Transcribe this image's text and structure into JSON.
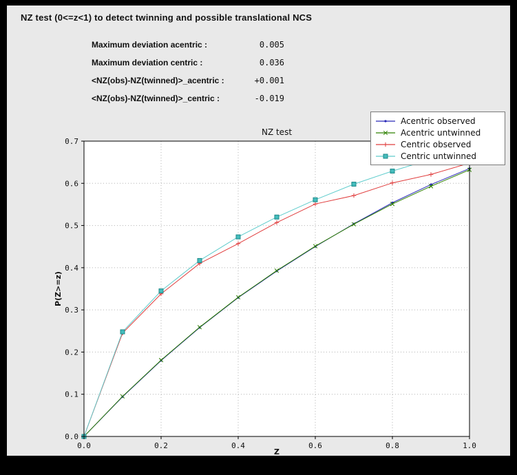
{
  "window": {
    "background": "#000000",
    "panel_background": "#e9e9e9"
  },
  "header": {
    "title": "NZ test (0<=z<1) to detect twinning and possible translational NCS"
  },
  "stats": {
    "rows": [
      {
        "label": "Maximum deviation acentric :",
        "value": "0.005"
      },
      {
        "label": "Maximum deviation centric :",
        "value": "0.036"
      },
      {
        "label": "<NZ(obs)-NZ(twinned)>_acentric :",
        "value": "+0.001"
      },
      {
        "label": "<NZ(obs)-NZ(twinned)>_centric :",
        "value": "-0.019"
      }
    ]
  },
  "chart_data": {
    "type": "line",
    "title": "NZ test",
    "xlabel": "Z",
    "ylabel": "P(Z>=z)",
    "xlim": [
      0.0,
      1.0
    ],
    "ylim": [
      0.0,
      0.7
    ],
    "xticks": [
      0.0,
      0.2,
      0.4,
      0.6,
      0.8,
      1.0
    ],
    "yticks": [
      0.0,
      0.1,
      0.2,
      0.3,
      0.4,
      0.5,
      0.6,
      0.7
    ],
    "grid": true,
    "legend_position": "top-right",
    "x": [
      0.0,
      0.1,
      0.2,
      0.3,
      0.4,
      0.5,
      0.6,
      0.7,
      0.8,
      0.9,
      1.0
    ],
    "series": [
      {
        "name": "Acentric observed",
        "color": "#2929b8",
        "marker": "dot",
        "values": [
          0.0,
          0.094,
          0.18,
          0.258,
          0.329,
          0.392,
          0.45,
          0.504,
          0.554,
          0.597,
          0.635
        ]
      },
      {
        "name": "Acentric untwinned",
        "color": "#2e8000",
        "marker": "x",
        "values": [
          0.0,
          0.095,
          0.181,
          0.259,
          0.33,
          0.393,
          0.451,
          0.503,
          0.551,
          0.593,
          0.632
        ]
      },
      {
        "name": "Centric observed",
        "color": "#e03c3c",
        "marker": "plus",
        "values": [
          0.0,
          0.245,
          0.338,
          0.41,
          0.457,
          0.507,
          0.551,
          0.571,
          0.601,
          0.621,
          0.648
        ]
      },
      {
        "name": "Centric untwinned",
        "color": "#5ecccc",
        "marker": "square",
        "marker_fill": "#44bcbc",
        "marker_edge": "#1f8a8a",
        "values": [
          0.0,
          0.248,
          0.345,
          0.417,
          0.473,
          0.52,
          0.561,
          0.598,
          0.629,
          0.657,
          0.683
        ]
      }
    ]
  }
}
